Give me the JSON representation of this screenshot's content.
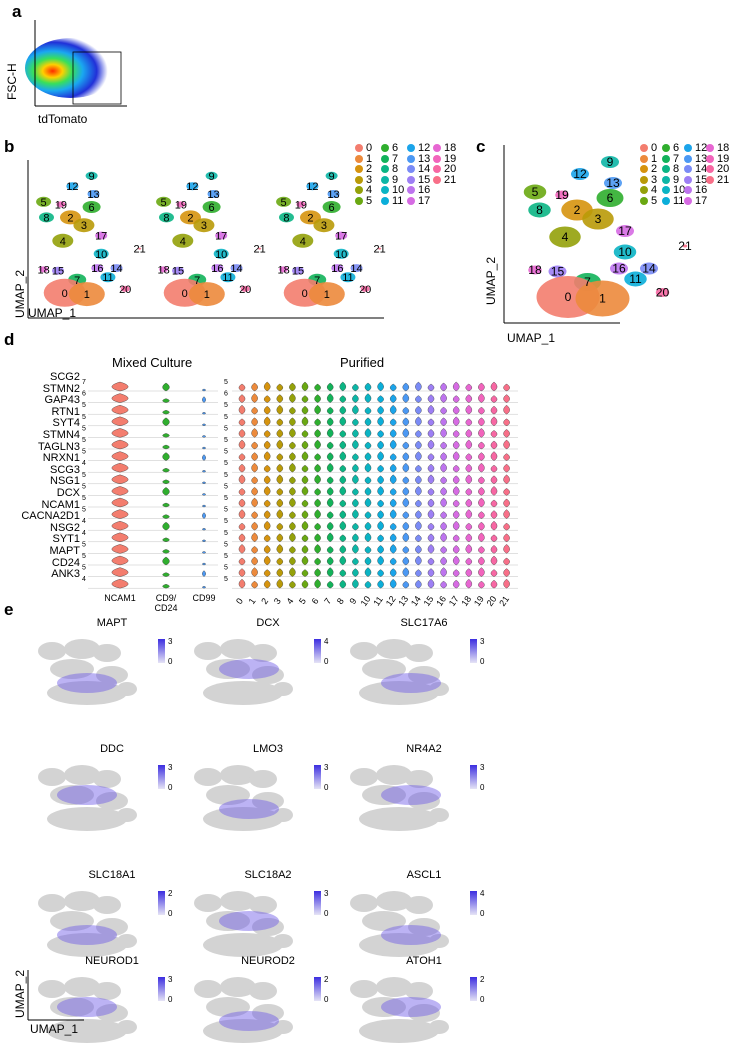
{
  "panel_a": {
    "letter": "a",
    "ylabel": "FSC-H",
    "xlabel": "tdTomato"
  },
  "panel_b": {
    "letter": "b",
    "ylabel": "UMAP_2",
    "xlabel": "UMAP_1",
    "labels": [
      "9",
      "12",
      "13",
      "5",
      "19",
      "6",
      "8",
      "2",
      "3",
      "4",
      "17",
      "21",
      "10",
      "18",
      "15",
      "16",
      "14",
      "7",
      "11",
      "20",
      "0",
      "1"
    ]
  },
  "panel_c": {
    "letter": "c",
    "ylabel": "UMAP_2",
    "xlabel": "UMAP_1",
    "labels": [
      "9",
      "12",
      "13",
      "5",
      "19",
      "6",
      "8",
      "2",
      "3",
      "17",
      "4",
      "10",
      "21",
      "16",
      "14",
      "18",
      "15",
      "7",
      "11",
      "20",
      "0",
      "1"
    ]
  },
  "clusters": [
    {
      "id": "0",
      "color": "#f37d6e"
    },
    {
      "id": "1",
      "color": "#ec8a3c"
    },
    {
      "id": "2",
      "color": "#d6930e"
    },
    {
      "id": "3",
      "color": "#b99a08"
    },
    {
      "id": "4",
      "color": "#94a10a"
    },
    {
      "id": "5",
      "color": "#6aa812"
    },
    {
      "id": "6",
      "color": "#2fae2e"
    },
    {
      "id": "7",
      "color": "#12b25a"
    },
    {
      "id": "8",
      "color": "#0bb584"
    },
    {
      "id": "9",
      "color": "#0db6a6"
    },
    {
      "id": "10",
      "color": "#0ab4c4"
    },
    {
      "id": "11",
      "color": "#0baed9"
    },
    {
      "id": "12",
      "color": "#1ba4ea"
    },
    {
      "id": "13",
      "color": "#4b98f3"
    },
    {
      "id": "14",
      "color": "#7a8bf6"
    },
    {
      "id": "15",
      "color": "#9d7ff4"
    },
    {
      "id": "16",
      "color": "#bd74ee"
    },
    {
      "id": "17",
      "color": "#d66be3"
    },
    {
      "id": "18",
      "color": "#e766d2"
    },
    {
      "id": "19",
      "color": "#f264bc"
    },
    {
      "id": "20",
      "color": "#f767a3"
    },
    {
      "id": "21",
      "color": "#f86f88"
    }
  ],
  "panel_d": {
    "letter": "d",
    "title_left": "Mixed Culture",
    "title_right": "Purified",
    "genes": [
      "SCG2",
      "STMN2",
      "GAP43",
      "RTN1",
      "SYT4",
      "STMN4",
      "TAGLN3",
      "NRXN1",
      "SCG3",
      "NSG1",
      "DCX",
      "NCAM1",
      "CACNA2D1",
      "NSG2",
      "SYT1",
      "MAPT",
      "CD24",
      "ANK3"
    ],
    "left_ymax": [
      "7",
      "6",
      "5",
      "5",
      "5",
      "5",
      "5",
      "4",
      "5",
      "5",
      "5",
      "5",
      "4",
      "4",
      "5",
      "5",
      "5",
      "4"
    ],
    "right_ymax": [
      "5",
      "6",
      "5",
      "5",
      "5",
      "5",
      "5",
      "5",
      "5",
      "5",
      "5",
      "5",
      "5",
      "5",
      "5",
      "5",
      "5",
      "5"
    ],
    "left_categories": [
      "NCAM1",
      "CD9/\nCD24",
      "CD99"
    ],
    "left_colors": [
      "#f37d6e",
      "#2fae2e",
      "#4b98f3"
    ],
    "right_categories": [
      "0",
      "1",
      "2",
      "3",
      "4",
      "5",
      "6",
      "7",
      "8",
      "9",
      "10",
      "11",
      "12",
      "13",
      "14",
      "15",
      "16",
      "17",
      "18",
      "19",
      "20",
      "21"
    ]
  },
  "panel_e": {
    "letter": "e",
    "ylabel": "UMAP_2",
    "xlabel": "UMAP_1",
    "features": [
      {
        "name": "MAPT",
        "max": "3",
        "min": "0"
      },
      {
        "name": "DCX",
        "max": "4",
        "min": "0"
      },
      {
        "name": "SLC17A6",
        "max": "3",
        "min": "0"
      },
      {
        "name": "DDC",
        "max": "3",
        "min": "0"
      },
      {
        "name": "LMO3",
        "max": "3",
        "min": "0"
      },
      {
        "name": "NR4A2",
        "max": "3",
        "min": "0"
      },
      {
        "name": "SLC18A1",
        "max": "2",
        "min": "0"
      },
      {
        "name": "SLC18A2",
        "max": "3",
        "min": "0"
      },
      {
        "name": "ASCL1",
        "max": "4",
        "min": "0"
      },
      {
        "name": "NEUROD1",
        "max": "3",
        "min": "0"
      },
      {
        "name": "NEUROD2",
        "max": "2",
        "min": "0"
      },
      {
        "name": "ATOH1",
        "max": "2",
        "min": "0"
      }
    ]
  }
}
